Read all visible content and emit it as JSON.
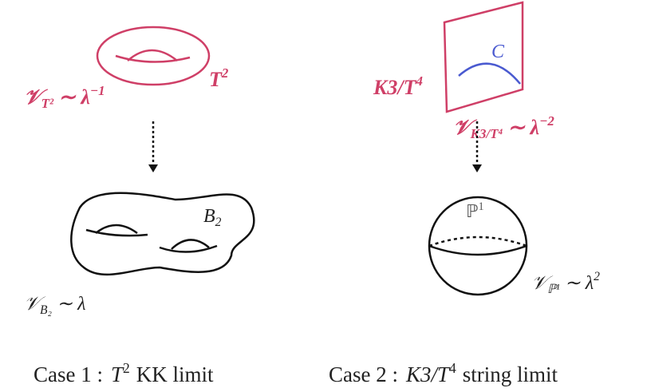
{
  "case1": {
    "torus_label": {
      "base": "T",
      "sup": "2"
    },
    "torus_volume": {
      "base": "𝒱",
      "sub": "T²",
      "rel": "∼ λ",
      "sup": "−1"
    },
    "base_label": {
      "base": "B",
      "sub": "2"
    },
    "base_volume": {
      "base": "𝒱",
      "sub": "B₂",
      "rel": "∼ λ"
    },
    "caption": {
      "prefix": "Case 1 :",
      "math": "T",
      "sup": "2",
      "suffix": "KK limit"
    }
  },
  "case2": {
    "fiber_label": {
      "base": "K3/T",
      "sup": "4"
    },
    "curve_label": "C",
    "fiber_volume": {
      "base": "𝒱",
      "sub": "K3/T⁴",
      "rel": "∼ λ",
      "sup": "−2"
    },
    "base_label": {
      "base": "ℙ",
      "sup": "1"
    },
    "base_volume": {
      "base": "𝒱",
      "sub": "ℙ¹",
      "rel": "∼ λ",
      "sup": "2"
    },
    "caption": {
      "prefix": "Case 2 :",
      "math": "K3/T",
      "sup": "4",
      "suffix": "string limit"
    }
  }
}
